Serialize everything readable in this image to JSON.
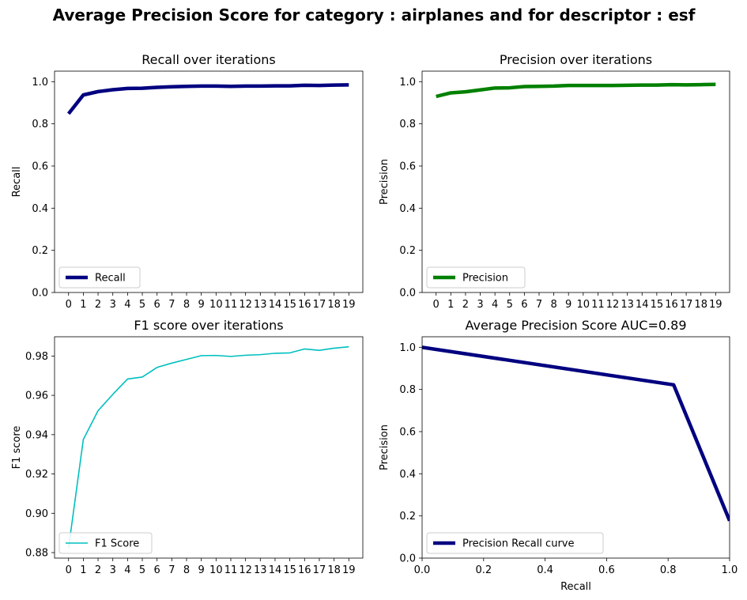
{
  "figure": {
    "title": "Average Precision Score for category : airplanes and for descriptor : esf"
  },
  "chart_data": [
    {
      "type": "line",
      "title": "Recall over iterations",
      "xlabel": "",
      "ylabel": "Recall",
      "ylim": [
        0,
        1.05
      ],
      "xlim": [
        -0.95,
        19.95
      ],
      "x": [
        0,
        1,
        2,
        3,
        4,
        5,
        6,
        7,
        8,
        9,
        10,
        11,
        12,
        13,
        14,
        15,
        16,
        17,
        18,
        19
      ],
      "y_ticks": [
        "0.0",
        "0.2",
        "0.4",
        "0.6",
        "0.8",
        "1.0"
      ],
      "grid": false,
      "legend_position": "lower left",
      "series": [
        {
          "name": "Recall",
          "color": "#000080",
          "line_width": "thick",
          "values": [
            0.848,
            0.937,
            0.953,
            0.962,
            0.968,
            0.969,
            0.973,
            0.976,
            0.978,
            0.979,
            0.979,
            0.978,
            0.979,
            0.979,
            0.98,
            0.98,
            0.983,
            0.982,
            0.984,
            0.985
          ]
        }
      ]
    },
    {
      "type": "line",
      "title": "Precision over iterations",
      "xlabel": "",
      "ylabel": "Precision",
      "ylim": [
        0,
        1.05
      ],
      "xlim": [
        -0.95,
        19.95
      ],
      "x": [
        0,
        1,
        2,
        3,
        4,
        5,
        6,
        7,
        8,
        9,
        10,
        11,
        12,
        13,
        14,
        15,
        16,
        17,
        18,
        19
      ],
      "y_ticks": [
        "0.0",
        "0.2",
        "0.4",
        "0.6",
        "0.8",
        "1.0"
      ],
      "grid": false,
      "legend_position": "lower left",
      "series": [
        {
          "name": "Precision",
          "color": "#008000",
          "line_width": "thick",
          "values": [
            0.93,
            0.947,
            0.952,
            0.961,
            0.97,
            0.971,
            0.977,
            0.978,
            0.979,
            0.982,
            0.982,
            0.982,
            0.982,
            0.983,
            0.984,
            0.984,
            0.986,
            0.985,
            0.986,
            0.987
          ]
        }
      ]
    },
    {
      "type": "line",
      "title": "F1 score over iterations",
      "xlabel": "",
      "ylabel": "F1 score",
      "ylim": [
        0.8772,
        0.9898
      ],
      "xlim": [
        -0.95,
        19.95
      ],
      "x": [
        0,
        1,
        2,
        3,
        4,
        5,
        6,
        7,
        8,
        9,
        10,
        11,
        12,
        13,
        14,
        15,
        16,
        17,
        18,
        19
      ],
      "y_ticks": [
        "0.88",
        "0.90",
        "0.92",
        "0.94",
        "0.96",
        "0.98"
      ],
      "grid": false,
      "legend_position": "lower left",
      "series": [
        {
          "name": "F1 Score",
          "color": "#00bfbf",
          "line_width": "thin",
          "values": [
            0.8824,
            0.9375,
            0.9522,
            0.9605,
            0.9683,
            0.9693,
            0.9742,
            0.9764,
            0.9783,
            0.9802,
            0.9803,
            0.9798,
            0.9804,
            0.9807,
            0.9814,
            0.9816,
            0.9836,
            0.9829,
            0.984,
            0.9847
          ]
        }
      ]
    },
    {
      "type": "line",
      "title": "Average Precision Score AUC=0.89",
      "xlabel": "Recall",
      "ylabel": "Precision",
      "ylim": [
        0,
        1.05
      ],
      "xlim": [
        0,
        1
      ],
      "x_ticks": [
        "0.0",
        "0.2",
        "0.4",
        "0.6",
        "0.8",
        "1.0"
      ],
      "y_ticks": [
        "0.0",
        "0.2",
        "0.4",
        "0.6",
        "0.8",
        "1.0"
      ],
      "grid": false,
      "legend_position": "lower left",
      "series": [
        {
          "name": "Precision Recall curve",
          "color": "#000080",
          "line_width": "thick",
          "x": [
            0.0,
            0.818,
            1.0
          ],
          "values": [
            1.0,
            0.822,
            0.177
          ]
        }
      ]
    }
  ]
}
